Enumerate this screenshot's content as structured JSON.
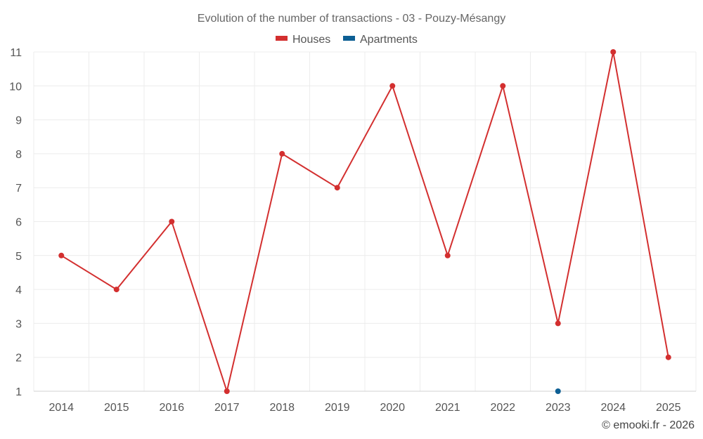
{
  "chart_data": {
    "type": "line",
    "title": "Evolution of the number of transactions - 03 - Pouzy-Mésangy",
    "x": [
      "2014",
      "2015",
      "2016",
      "2017",
      "2018",
      "2019",
      "2020",
      "2021",
      "2022",
      "2023",
      "2024",
      "2025"
    ],
    "series": [
      {
        "name": "Houses",
        "color": "#d32f2f",
        "values": [
          5,
          4,
          6,
          1,
          8,
          7,
          10,
          5,
          10,
          3,
          11,
          2
        ]
      },
      {
        "name": "Apartments",
        "color": "#0d5f94",
        "values": [
          null,
          null,
          null,
          null,
          null,
          null,
          null,
          null,
          null,
          1,
          null,
          null
        ]
      }
    ],
    "y_ticks": [
      "1",
      "2",
      "3",
      "4",
      "5",
      "6",
      "7",
      "8",
      "9",
      "10",
      "11"
    ],
    "ylim": [
      1,
      11
    ],
    "grid": true,
    "legend_position": "top-center"
  },
  "credit": "© emooki.fr - 2026"
}
